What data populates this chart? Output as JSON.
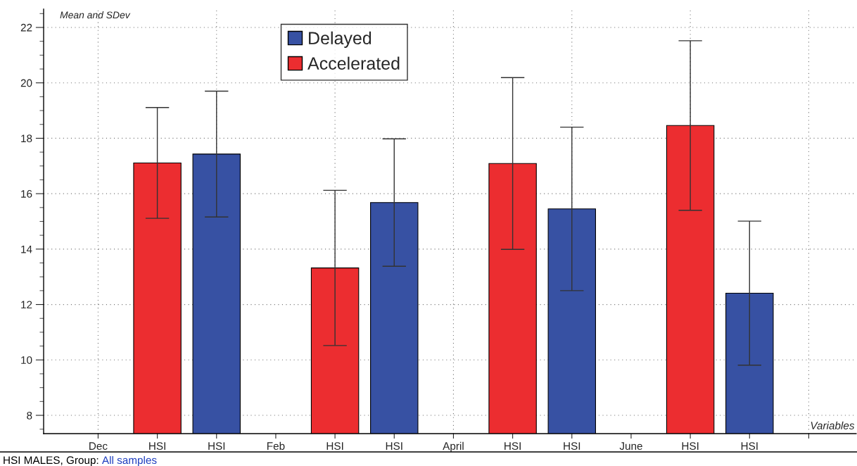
{
  "chart_data": {
    "type": "bar",
    "title": "Mean and SDev",
    "xlabel": "Variables",
    "categories": [
      "Dec",
      "HSI",
      "HSI",
      "Feb",
      "HSI",
      "HSI",
      "April",
      "HSI",
      "HSI",
      "June",
      "HSI",
      "HSI",
      null
    ],
    "series": [
      {
        "name": "Accelerated",
        "color": "#ec2d30",
        "values": [
          null,
          17.11,
          null,
          null,
          13.32,
          null,
          null,
          17.09,
          null,
          null,
          18.46,
          null,
          null
        ],
        "errors": [
          null,
          2.0,
          null,
          null,
          2.8,
          null,
          null,
          3.1,
          null,
          null,
          3.06,
          null,
          null
        ]
      },
      {
        "name": "Delayed",
        "color": "#3751a3",
        "values": [
          null,
          null,
          17.43,
          null,
          null,
          15.68,
          null,
          null,
          15.45,
          null,
          null,
          12.41,
          null
        ],
        "errors": [
          null,
          null,
          2.27,
          null,
          null,
          2.3,
          null,
          null,
          2.95,
          null,
          null,
          2.6,
          null
        ]
      }
    ],
    "ylim": [
      7.34,
      22.66
    ],
    "yticks": [
      8,
      10,
      12,
      14,
      16,
      18,
      20,
      22
    ],
    "grid": true,
    "legend": "top",
    "annotations": [
      "HSI MALES, Group: ",
      "All samples"
    ]
  }
}
